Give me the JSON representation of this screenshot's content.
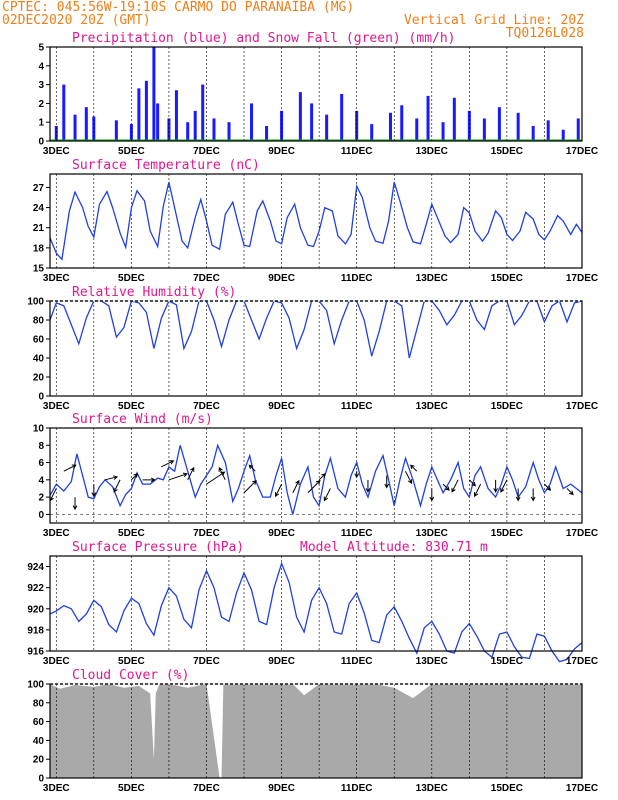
{
  "header": {
    "line1": "CPTEC:   045:56W-19:10S  CARMO DO PARANAIBA (MG)",
    "line2_left": "02DEC2020 20Z (GMT)",
    "line2_right": "Vertical Grid Line: 20Z",
    "line3_right": "TQ0126L028"
  },
  "colors": {
    "header": "#f07f1a",
    "title": "#e01890",
    "line": "#2040e0",
    "precip": "#1a1aff",
    "snow": "#00aa00",
    "cloud": "#a9a9a9"
  },
  "x_tick_labels": [
    "3DEC",
    "5DEC",
    "7DEC",
    "9DEC",
    "11DEC",
    "13DEC",
    "15DEC",
    "17DEC"
  ],
  "chart_data": [
    {
      "id": "precip",
      "type": "bar",
      "title": "Precipitation (blue) and Snow Fall (green) (mm/h)",
      "ylim": [
        0,
        5
      ],
      "yticks": [
        0,
        1,
        2,
        3,
        4,
        5
      ],
      "x_range": [
        2.833,
        17.0
      ],
      "series": [
        {
          "name": "Precipitation",
          "x": [
            3.0,
            3.2,
            3.5,
            3.8,
            4.0,
            4.6,
            5.0,
            5.2,
            5.4,
            5.6,
            5.7,
            6.0,
            6.2,
            6.5,
            6.7,
            6.9,
            7.2,
            7.6,
            8.2,
            8.6,
            9.0,
            9.5,
            9.8,
            10.2,
            10.6,
            11.0,
            11.4,
            11.9,
            12.2,
            12.6,
            12.9,
            13.3,
            13.6,
            14.0,
            14.4,
            14.8,
            15.3,
            15.7,
            16.1,
            16.5,
            16.9
          ],
          "values": [
            0.8,
            3.0,
            1.4,
            1.8,
            1.3,
            1.1,
            0.9,
            2.8,
            3.2,
            5.0,
            2.0,
            1.2,
            2.7,
            1.0,
            1.6,
            3.0,
            1.2,
            1.0,
            2.0,
            0.8,
            1.6,
            2.6,
            2.0,
            1.4,
            2.5,
            1.6,
            0.9,
            1.5,
            1.9,
            1.2,
            2.4,
            1.0,
            2.3,
            1.6,
            1.2,
            1.8,
            1.5,
            0.8,
            1.1,
            0.6,
            1.2
          ]
        },
        {
          "name": "Snow Fall",
          "x": [
            2.833,
            17.0
          ],
          "values": [
            0,
            0
          ]
        }
      ]
    },
    {
      "id": "temperature",
      "type": "line",
      "title": "Surface Temperature (nC)",
      "ylim": [
        15,
        29
      ],
      "yticks": [
        15,
        18,
        21,
        24,
        27
      ],
      "x": [
        2.833,
        3.0,
        3.15,
        3.35,
        3.5,
        3.7,
        3.85,
        4.0,
        4.15,
        4.35,
        4.5,
        4.7,
        4.85,
        5.0,
        5.15,
        5.35,
        5.5,
        5.7,
        5.85,
        6.0,
        6.15,
        6.35,
        6.5,
        6.7,
        6.85,
        7.0,
        7.15,
        7.35,
        7.5,
        7.7,
        7.85,
        8.0,
        8.15,
        8.35,
        8.5,
        8.7,
        8.85,
        9.0,
        9.15,
        9.35,
        9.5,
        9.7,
        9.85,
        10.0,
        10.15,
        10.35,
        10.5,
        10.7,
        10.85,
        11.0,
        11.15,
        11.35,
        11.5,
        11.7,
        11.85,
        12.0,
        12.15,
        12.35,
        12.5,
        12.7,
        12.85,
        13.0,
        13.15,
        13.35,
        13.5,
        13.7,
        13.85,
        14.0,
        14.15,
        14.35,
        14.5,
        14.7,
        14.85,
        15.0,
        15.15,
        15.35,
        15.5,
        15.7,
        15.85,
        16.0,
        16.15,
        16.35,
        16.5,
        16.7,
        16.85,
        17.0
      ],
      "y": [
        19.5,
        17.2,
        16.3,
        23.5,
        26.3,
        24.0,
        21.2,
        19.6,
        24.5,
        26.4,
        24.0,
        20.2,
        18.1,
        24.0,
        26.5,
        25.0,
        20.5,
        18.2,
        24.2,
        27.8,
        24.0,
        19.0,
        18.0,
        22.5,
        25.2,
        22.0,
        18.4,
        17.8,
        23.0,
        24.8,
        21.5,
        18.4,
        18.2,
        23.5,
        25.0,
        22.0,
        19.0,
        18.6,
        22.5,
        24.5,
        21.0,
        18.4,
        18.2,
        20.5,
        24.0,
        23.5,
        19.8,
        18.6,
        20.0,
        27.2,
        25.5,
        21.0,
        19.0,
        18.7,
        22.0,
        27.8,
        25.0,
        21.0,
        18.9,
        18.6,
        21.5,
        24.5,
        22.5,
        19.8,
        18.8,
        20.0,
        24.0,
        23.2,
        20.5,
        19.0,
        20.2,
        23.5,
        22.5,
        20.0,
        19.1,
        20.5,
        23.3,
        22.3,
        20.0,
        19.2,
        20.5,
        22.8,
        22.0,
        20.0,
        21.5,
        20.3
      ]
    },
    {
      "id": "humidity",
      "type": "line",
      "title": "Relative Humidity (%)",
      "ylim": [
        0,
        100
      ],
      "yticks": [
        0,
        20,
        40,
        60,
        80,
        100
      ],
      "x": [
        2.833,
        3.0,
        3.2,
        3.45,
        3.6,
        3.8,
        4.0,
        4.2,
        4.4,
        4.6,
        4.8,
        5.0,
        5.2,
        5.4,
        5.6,
        5.8,
        6.0,
        6.2,
        6.4,
        6.6,
        6.8,
        7.0,
        7.2,
        7.4,
        7.6,
        7.8,
        8.0,
        8.2,
        8.4,
        8.6,
        8.8,
        9.0,
        9.2,
        9.4,
        9.6,
        9.8,
        10.0,
        10.2,
        10.4,
        10.6,
        10.8,
        11.0,
        11.2,
        11.4,
        11.6,
        11.8,
        12.0,
        12.2,
        12.4,
        12.6,
        12.8,
        13.0,
        13.2,
        13.4,
        13.6,
        13.8,
        14.0,
        14.2,
        14.4,
        14.6,
        14.8,
        15.0,
        15.2,
        15.4,
        15.6,
        15.8,
        16.0,
        16.2,
        16.4,
        16.6,
        16.8,
        17.0
      ],
      "y": [
        80,
        98,
        95,
        70,
        55,
        82,
        100,
        100,
        95,
        62,
        72,
        100,
        98,
        88,
        50,
        82,
        100,
        96,
        50,
        68,
        100,
        100,
        80,
        52,
        80,
        100,
        100,
        80,
        60,
        82,
        100,
        98,
        82,
        50,
        70,
        100,
        100,
        90,
        55,
        80,
        100,
        100,
        80,
        42,
        68,
        100,
        100,
        95,
        40,
        70,
        100,
        100,
        90,
        75,
        85,
        100,
        100,
        80,
        70,
        95,
        100,
        100,
        75,
        85,
        100,
        100,
        78,
        95,
        100,
        78,
        98,
        100
      ]
    },
    {
      "id": "wind",
      "type": "line",
      "title": "Surface Wind (m/s)",
      "ylim": [
        -1,
        10
      ],
      "yticks": [
        0,
        2,
        4,
        6,
        8,
        10
      ],
      "x": [
        2.833,
        3.0,
        3.2,
        3.4,
        3.55,
        3.7,
        3.85,
        4.0,
        4.15,
        4.3,
        4.5,
        4.7,
        4.85,
        5.0,
        5.15,
        5.3,
        5.5,
        5.7,
        5.85,
        6.0,
        6.15,
        6.3,
        6.5,
        6.7,
        6.85,
        7.0,
        7.15,
        7.3,
        7.5,
        7.7,
        7.85,
        8.0,
        8.15,
        8.3,
        8.5,
        8.7,
        8.85,
        9.0,
        9.15,
        9.3,
        9.5,
        9.7,
        9.85,
        10.0,
        10.15,
        10.3,
        10.5,
        10.7,
        10.85,
        11.0,
        11.15,
        11.3,
        11.5,
        11.7,
        11.85,
        12.0,
        12.15,
        12.3,
        12.5,
        12.7,
        12.85,
        13.0,
        13.15,
        13.3,
        13.5,
        13.7,
        13.85,
        14.0,
        14.15,
        14.3,
        14.5,
        14.7,
        14.85,
        15.0,
        15.15,
        15.3,
        15.5,
        15.7,
        15.85,
        16.0,
        16.15,
        16.3,
        16.5,
        16.7,
        16.85,
        17.0
      ],
      "y": [
        2.2,
        3.5,
        2.7,
        3.8,
        7.0,
        4.5,
        2.0,
        1.8,
        3.2,
        4.0,
        3.2,
        1.0,
        2.3,
        3.0,
        4.8,
        3.5,
        3.5,
        4.2,
        4.0,
        5.5,
        5.0,
        8.0,
        5.0,
        2.0,
        3.5,
        4.5,
        5.5,
        8.0,
        6.0,
        1.5,
        3.0,
        5.0,
        6.8,
        4.0,
        2.0,
        2.0,
        4.5,
        6.5,
        2.5,
        0.0,
        3.5,
        5.5,
        2.0,
        1.0,
        4.5,
        6.5,
        3.0,
        2.0,
        4.5,
        6.0,
        3.5,
        2.0,
        5.0,
        6.8,
        4.0,
        1.0,
        4.0,
        6.5,
        4.0,
        1.0,
        3.5,
        5.5,
        4.0,
        2.5,
        4.0,
        6.0,
        3.0,
        2.0,
        4.5,
        5.5,
        3.0,
        2.0,
        3.5,
        5.5,
        4.0,
        2.0,
        3.2,
        6.0,
        4.0,
        2.5,
        3.5,
        5.5,
        3.0,
        3.5,
        3.0,
        2.5
      ],
      "vectors": [
        {
          "x": 3.0,
          "y": 3.0,
          "u": -1,
          "v": -2
        },
        {
          "x": 3.2,
          "y": 5.0,
          "u": 2,
          "v": 1
        },
        {
          "x": 3.5,
          "y": 2.0,
          "u": 0,
          "v": -2
        },
        {
          "x": 4.0,
          "y": 3.5,
          "u": 0,
          "v": -2
        },
        {
          "x": 4.3,
          "y": 4.0,
          "u": 2,
          "v": 0.5
        },
        {
          "x": 4.7,
          "y": 4.0,
          "u": -1,
          "v": -2
        },
        {
          "x": 5.0,
          "y": 4.0,
          "u": 1,
          "v": 1
        },
        {
          "x": 5.3,
          "y": 4.0,
          "u": 2,
          "v": 0
        },
        {
          "x": 5.8,
          "y": 5.5,
          "u": 2,
          "v": 1
        },
        {
          "x": 6.0,
          "y": 4.0,
          "u": 3,
          "v": 1
        },
        {
          "x": 6.5,
          "y": 4.0,
          "u": 1,
          "v": 2
        },
        {
          "x": 7.0,
          "y": 3.5,
          "u": 3,
          "v": 2
        },
        {
          "x": 7.5,
          "y": 4.0,
          "u": -1,
          "v": 2
        },
        {
          "x": 8.0,
          "y": 2.5,
          "u": 2,
          "v": 2
        },
        {
          "x": 8.3,
          "y": 5.0,
          "u": -1,
          "v": 1
        },
        {
          "x": 9.0,
          "y": 3.5,
          "u": -1,
          "v": -2
        },
        {
          "x": 9.3,
          "y": 2.5,
          "u": 1,
          "v": 2
        },
        {
          "x": 9.7,
          "y": 2.5,
          "u": 2,
          "v": 2
        },
        {
          "x": 10.0,
          "y": 4.0,
          "u": 1,
          "v": 1
        },
        {
          "x": 10.3,
          "y": 3.0,
          "u": -1,
          "v": -2
        },
        {
          "x": 11.0,
          "y": 5.0,
          "u": 0,
          "v": -1
        },
        {
          "x": 11.3,
          "y": 4.0,
          "u": 0,
          "v": -2
        },
        {
          "x": 11.8,
          "y": 4.5,
          "u": 0,
          "v": -2
        },
        {
          "x": 12.3,
          "y": 5.0,
          "u": 1,
          "v": -2
        },
        {
          "x": 12.6,
          "y": 5.0,
          "u": -1,
          "v": 1
        },
        {
          "x": 13.0,
          "y": 3.0,
          "u": 0,
          "v": -2
        },
        {
          "x": 13.3,
          "y": 3.5,
          "u": 1,
          "v": -1
        },
        {
          "x": 13.7,
          "y": 4.0,
          "u": -1,
          "v": -2
        },
        {
          "x": 14.0,
          "y": 4.0,
          "u": 1,
          "v": -1
        },
        {
          "x": 14.3,
          "y": 3.5,
          "u": -1,
          "v": -2
        },
        {
          "x": 14.7,
          "y": 4.0,
          "u": 0,
          "v": -2
        },
        {
          "x": 15.0,
          "y": 4.0,
          "u": -1,
          "v": -2
        },
        {
          "x": 15.3,
          "y": 3.0,
          "u": 0,
          "v": -2
        },
        {
          "x": 15.7,
          "y": 3.0,
          "u": 0,
          "v": -2
        },
        {
          "x": 16.0,
          "y": 3.5,
          "u": 1,
          "v": -1
        },
        {
          "x": 16.6,
          "y": 3.0,
          "u": 1,
          "v": -1
        }
      ]
    },
    {
      "id": "pressure",
      "type": "line",
      "title": "Surface Pressure (hPa)",
      "annotation": "Model Altitude: 830.71 m",
      "ylim": [
        916,
        925
      ],
      "yticks": [
        916,
        918,
        920,
        922,
        924
      ],
      "x": [
        2.833,
        3.0,
        3.2,
        3.4,
        3.6,
        3.8,
        4.0,
        4.2,
        4.4,
        4.6,
        4.8,
        5.0,
        5.2,
        5.4,
        5.6,
        5.8,
        6.0,
        6.2,
        6.4,
        6.6,
        6.8,
        7.0,
        7.2,
        7.4,
        7.6,
        7.8,
        8.0,
        8.2,
        8.4,
        8.6,
        8.8,
        9.0,
        9.2,
        9.4,
        9.6,
        9.8,
        10.0,
        10.2,
        10.4,
        10.6,
        10.8,
        11.0,
        11.2,
        11.4,
        11.6,
        11.8,
        12.0,
        12.2,
        12.4,
        12.6,
        12.8,
        13.0,
        13.2,
        13.4,
        13.6,
        13.8,
        14.0,
        14.2,
        14.4,
        14.6,
        14.8,
        15.0,
        15.2,
        15.4,
        15.6,
        15.8,
        16.0,
        16.2,
        16.4,
        16.6,
        16.8,
        17.0
      ],
      "y": [
        919.5,
        919.8,
        920.3,
        920.0,
        918.8,
        919.5,
        920.8,
        920.2,
        918.5,
        917.8,
        919.8,
        921.0,
        920.5,
        918.6,
        917.5,
        920.3,
        922.0,
        921.2,
        919.0,
        918.2,
        921.8,
        923.6,
        922.0,
        919.2,
        918.8,
        921.5,
        923.4,
        921.8,
        918.8,
        918.5,
        922.0,
        924.3,
        922.5,
        919.2,
        917.8,
        920.8,
        922.0,
        920.5,
        917.8,
        917.6,
        920.5,
        921.5,
        919.6,
        917.0,
        916.8,
        919.4,
        920.2,
        918.8,
        917.2,
        915.8,
        918.2,
        918.8,
        917.6,
        916.0,
        915.8,
        917.8,
        918.6,
        917.4,
        916.0,
        915.4,
        917.6,
        917.8,
        916.4,
        915.4,
        915.3,
        917.6,
        917.4,
        916.0,
        915.0,
        915.2,
        916.2,
        916.8
      ]
    },
    {
      "id": "cloud",
      "type": "area",
      "title": "Cloud Cover (%)",
      "ylim": [
        0,
        100
      ],
      "yticks": [
        0,
        20,
        40,
        60,
        80,
        100
      ],
      "x": [
        2.833,
        3.1,
        3.5,
        4.0,
        4.4,
        4.8,
        5.2,
        5.5,
        5.6,
        5.65,
        5.75,
        6.0,
        6.5,
        7.0,
        7.35,
        7.4,
        7.45,
        7.8,
        8.3,
        8.8,
        9.3,
        9.6,
        10.0,
        10.5,
        11.0,
        11.5,
        12.0,
        12.5,
        13.0,
        13.5,
        14.0,
        14.5,
        15.0,
        15.5,
        16.0,
        16.5,
        17.0
      ],
      "y": [
        100,
        95,
        99,
        97,
        100,
        96,
        98,
        90,
        20,
        90,
        100,
        100,
        96,
        100,
        0,
        0,
        100,
        100,
        100,
        100,
        100,
        88,
        100,
        100,
        100,
        100,
        96,
        85,
        100,
        100,
        100,
        100,
        100,
        100,
        100,
        100,
        100
      ]
    }
  ]
}
